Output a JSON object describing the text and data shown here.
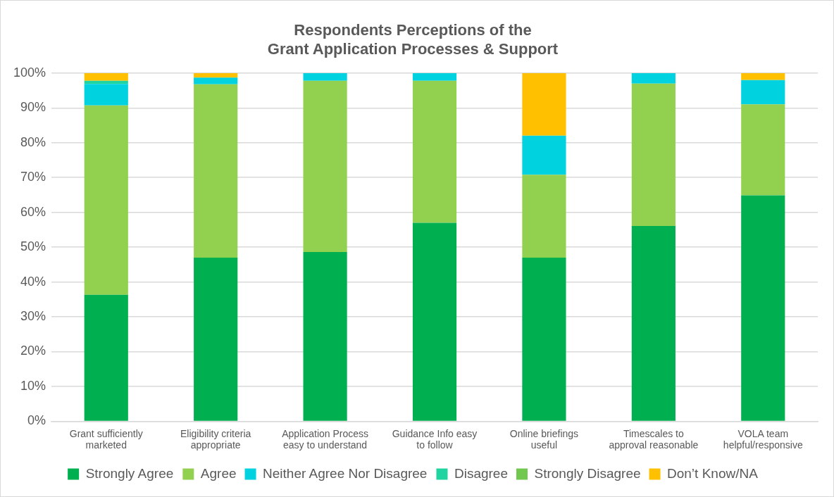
{
  "chart_data": {
    "type": "bar",
    "title": "Respondents Perceptions of the\nGrant Application Processes & Support",
    "stacked": true,
    "grid": "y",
    "legend": "bottom",
    "categories": [
      "Grant sufficiently marketed",
      "Eligibility criteria appropriate",
      "Application Process easy to understand",
      "Guidance Info easy to follow",
      "Online briefings useful",
      "Timescales to approval reasonable",
      "VOLA team helpful/responsive"
    ],
    "ylim": [
      0,
      100
    ],
    "yticks": [
      {
        "value": 0,
        "label": "0%"
      },
      {
        "value": 10,
        "label": "10%"
      },
      {
        "value": 20,
        "label": "20%"
      },
      {
        "value": 30,
        "label": "30%"
      },
      {
        "value": 40,
        "label": "40%"
      },
      {
        "value": 50,
        "label": "50%"
      },
      {
        "value": 60,
        "label": "60%"
      },
      {
        "value": 70,
        "label": "70%"
      },
      {
        "value": 80,
        "label": "80%"
      },
      {
        "value": 90,
        "label": "90%"
      },
      {
        "value": 100,
        "label": "100%"
      }
    ],
    "series": [
      {
        "name": "Strongly Agree",
        "color": "#00b050",
        "values": [
          36.3,
          47,
          48.6,
          57,
          47,
          56.1,
          64.9
        ]
      },
      {
        "name": "Agree",
        "color": "#92d050",
        "values": [
          54.4,
          49.8,
          49.2,
          40.8,
          23.8,
          40.9,
          26.1
        ]
      },
      {
        "name": "Neither Agree Nor Disagree",
        "color": "#00d2e0",
        "values": [
          6.2,
          1.9,
          2.2,
          2.2,
          11.2,
          3,
          7
        ]
      },
      {
        "name": "Disagree",
        "color": "#1fd4a0",
        "values": [
          0.9,
          0,
          0,
          0,
          0,
          0,
          0
        ]
      },
      {
        "name": "Strongly Disagree",
        "color": "#72c84e",
        "values": [
          0,
          0,
          0,
          0,
          0,
          0,
          0
        ]
      },
      {
        "name": "Don’t Know/NA",
        "color": "#ffc000",
        "values": [
          2.2,
          1.3,
          0,
          0,
          18,
          0,
          2
        ]
      }
    ]
  }
}
